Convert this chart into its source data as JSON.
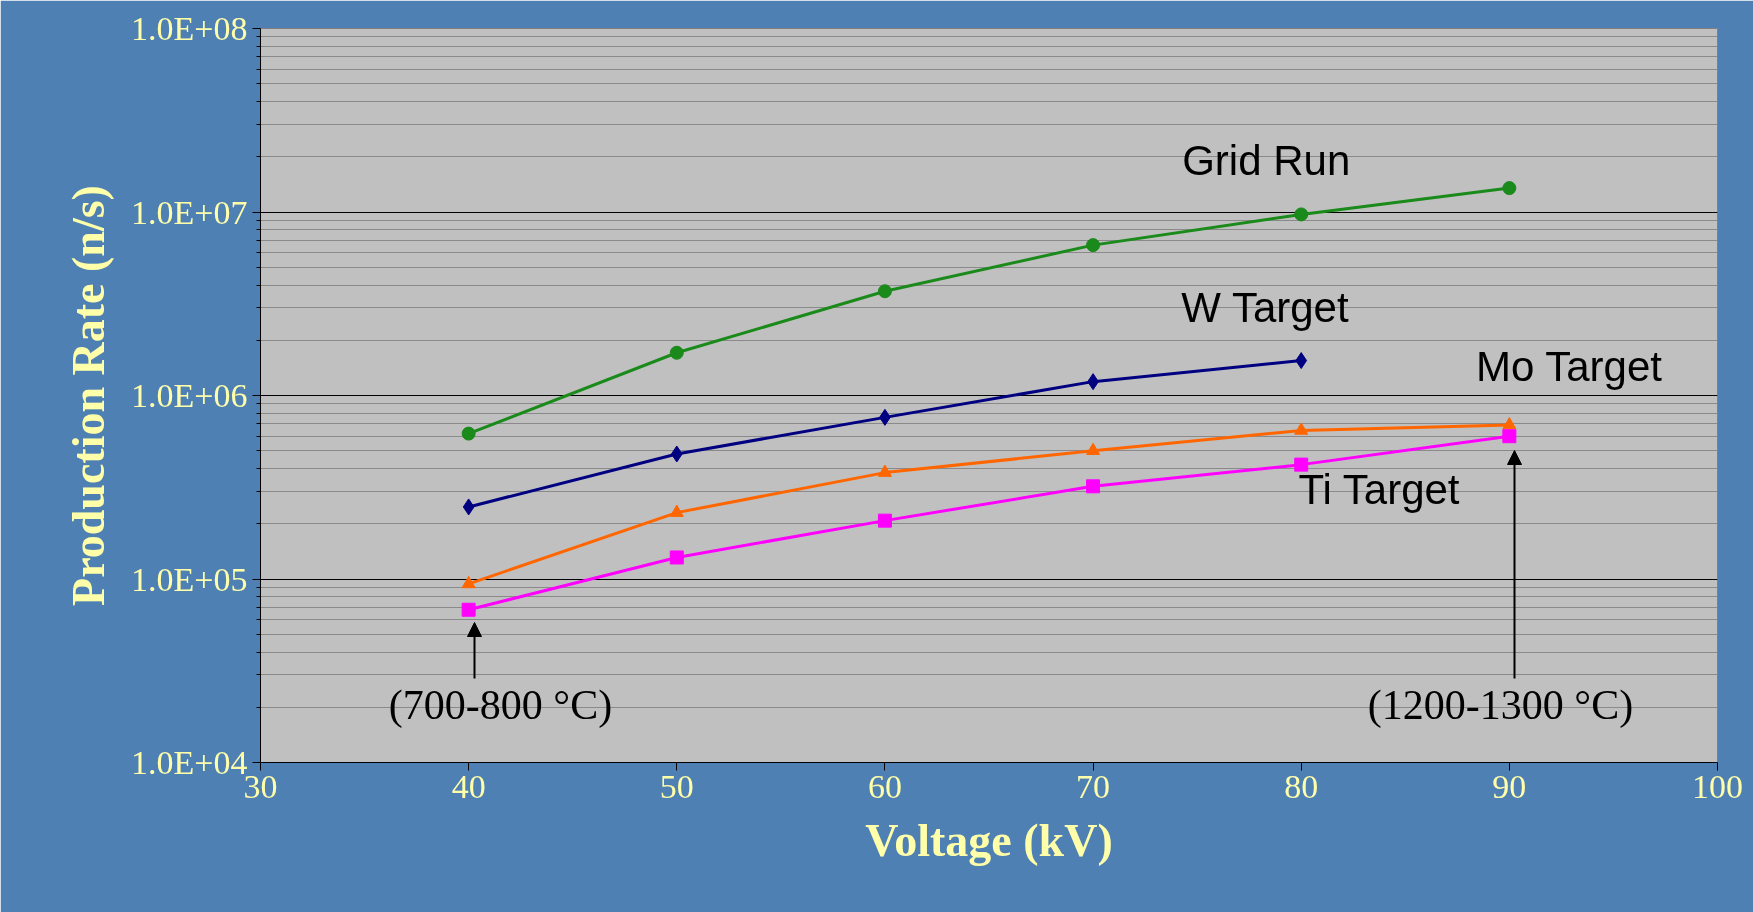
{
  "chart_data": {
    "type": "line",
    "xlabel": "Voltage (kV)",
    "ylabel": "Production Rate (n/s)",
    "log": "y",
    "grid": "y",
    "xlim": [
      30,
      100
    ],
    "xticks": [
      30,
      40,
      50,
      60,
      70,
      80,
      90,
      100
    ],
    "ylim": [
      10000,
      100000000
    ],
    "yticks": [
      {
        "value": 10000,
        "label": "1.0E+04"
      },
      {
        "value": 100000,
        "label": "1.0E+05"
      },
      {
        "value": 1000000,
        "label": "1.0E+06"
      },
      {
        "value": 10000000,
        "label": "1.0E+07"
      },
      {
        "value": 100000000,
        "label": "1.0E+08"
      }
    ],
    "series": [
      {
        "name": "Grid Run",
        "color": "#1a8a1a",
        "marker": "circle",
        "x": [
          40,
          50,
          60,
          70,
          80,
          90
        ],
        "values": [
          620000,
          1710000,
          3700000,
          6600000,
          9700000,
          13500000
        ]
      },
      {
        "name": "W  Target",
        "color": "#000080",
        "marker": "diamond",
        "x": [
          40,
          50,
          60,
          70,
          80
        ],
        "values": [
          247000,
          480000,
          760000,
          1190000,
          1550000
        ]
      },
      {
        "name": "Mo Target",
        "color": "#ff6600",
        "marker": "triangle",
        "x": [
          40,
          50,
          60,
          70,
          80,
          90
        ],
        "values": [
          94000,
          230000,
          380000,
          500000,
          645000,
          690000
        ]
      },
      {
        "name": "Ti Target",
        "color": "#ff00ff",
        "marker": "square",
        "x": [
          40,
          50,
          60,
          70,
          80,
          90
        ],
        "values": [
          68000,
          131000,
          208000,
          320000,
          420000,
          600000
        ]
      }
    ],
    "annotations": [
      "(700-800 °C)",
      "(1200-1300 °C)"
    ]
  }
}
